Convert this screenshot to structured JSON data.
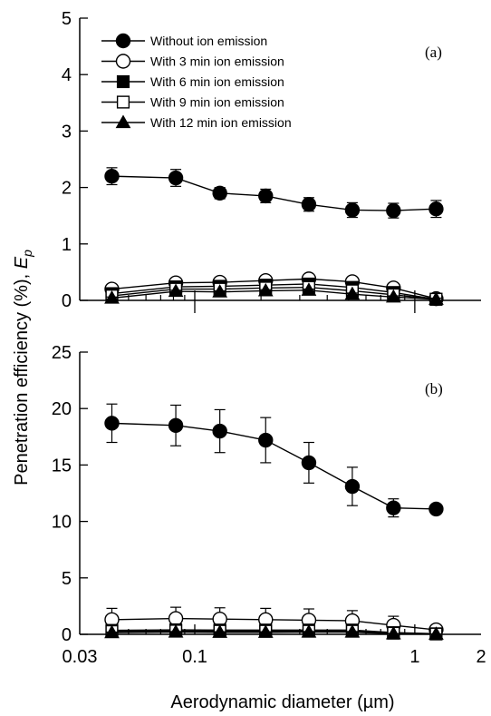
{
  "chart_data": [
    {
      "type": "line",
      "panel_label": "(a)",
      "xscale": "log",
      "xlim": [
        0.03,
        2
      ],
      "xticks": [
        0.03,
        0.1,
        1,
        2
      ],
      "xtick_labels": [
        "0.03",
        "0.1",
        "1",
        "2"
      ],
      "ylim": [
        0,
        5
      ],
      "yticks": [
        0,
        1,
        2,
        3,
        4,
        5
      ],
      "ytick_labels": [
        "0",
        "1",
        "2",
        "3",
        "4",
        "5"
      ],
      "grid": false,
      "legend_position": "top-left",
      "x": [
        0.042,
        0.082,
        0.13,
        0.21,
        0.33,
        0.52,
        0.8,
        1.25
      ],
      "series": [
        {
          "name": "Without ion emission",
          "marker": "filled-circle",
          "values": [
            2.2,
            2.17,
            1.9,
            1.85,
            1.7,
            1.6,
            1.59,
            1.62
          ],
          "errors": [
            0.15,
            0.15,
            0.1,
            0.12,
            0.12,
            0.13,
            0.13,
            0.15
          ]
        },
        {
          "name": "With 3 min ion emission",
          "marker": "open-circle",
          "values": [
            0.2,
            0.31,
            0.32,
            0.35,
            0.38,
            0.33,
            0.22,
            0.03
          ],
          "errors": [
            0.04,
            0.05,
            0.05,
            0.05,
            0.06,
            0.06,
            0.05,
            0.02
          ]
        },
        {
          "name": "With 6 min ion emission",
          "marker": "filled-square",
          "values": [
            0.12,
            0.24,
            0.25,
            0.27,
            0.29,
            0.23,
            0.14,
            0.02
          ],
          "errors": [
            0.03,
            0.04,
            0.04,
            0.04,
            0.04,
            0.04,
            0.03,
            0.02
          ]
        },
        {
          "name": "With 9 min ion emission",
          "marker": "open-square",
          "values": [
            0.08,
            0.2,
            0.2,
            0.22,
            0.23,
            0.17,
            0.1,
            0.02
          ],
          "errors": [
            0.03,
            0.03,
            0.03,
            0.03,
            0.03,
            0.03,
            0.03,
            0.02
          ]
        },
        {
          "name": "With 12 min ion emission",
          "marker": "filled-triangle",
          "values": [
            0.04,
            0.16,
            0.15,
            0.17,
            0.18,
            0.11,
            0.06,
            0.02
          ],
          "errors": [
            0.02,
            0.02,
            0.02,
            0.02,
            0.02,
            0.02,
            0.02,
            0.02
          ]
        }
      ]
    },
    {
      "type": "line",
      "panel_label": "(b)",
      "xscale": "log",
      "xlim": [
        0.03,
        2
      ],
      "xticks": [
        0.03,
        0.1,
        1,
        2
      ],
      "xtick_labels": [
        "0.03",
        "0.1",
        "1",
        "2"
      ],
      "ylim": [
        0,
        25
      ],
      "yticks": [
        0,
        5,
        10,
        15,
        20,
        25
      ],
      "ytick_labels": [
        "0",
        "5",
        "10",
        "15",
        "20",
        "25"
      ],
      "grid": false,
      "x": [
        0.042,
        0.082,
        0.13,
        0.21,
        0.33,
        0.52,
        0.8,
        1.25
      ],
      "series": [
        {
          "name": "Without ion emission",
          "marker": "filled-circle",
          "values": [
            18.7,
            18.5,
            18.0,
            17.2,
            15.2,
            13.1,
            11.2,
            11.1
          ],
          "errors": [
            1.7,
            1.8,
            1.9,
            2.0,
            1.8,
            1.7,
            0.8,
            0.0
          ]
        },
        {
          "name": "With 3 min ion emission",
          "marker": "open-circle",
          "values": [
            1.3,
            1.4,
            1.35,
            1.3,
            1.25,
            1.2,
            0.8,
            0.4
          ],
          "errors": [
            1.0,
            1.0,
            1.0,
            1.0,
            1.0,
            0.9,
            0.8,
            0.1
          ]
        },
        {
          "name": "With 6 min ion emission",
          "marker": "filled-square",
          "values": [
            0.35,
            0.4,
            0.38,
            0.38,
            0.38,
            0.38,
            0.15,
            0.05
          ],
          "errors": [
            0.1,
            0.1,
            0.1,
            0.1,
            0.1,
            0.1,
            0.05,
            0.02
          ]
        },
        {
          "name": "With 9 min ion emission",
          "marker": "open-square",
          "values": [
            0.25,
            0.3,
            0.28,
            0.28,
            0.28,
            0.28,
            0.1,
            0.03
          ],
          "errors": [
            0.1,
            0.1,
            0.1,
            0.1,
            0.1,
            0.1,
            0.05,
            0.02
          ]
        },
        {
          "name": "With 12 min ion emission",
          "marker": "filled-triangle",
          "values": [
            0.15,
            0.2,
            0.18,
            0.18,
            0.2,
            0.2,
            0.05,
            0.02
          ],
          "errors": [
            0.05,
            0.05,
            0.05,
            0.05,
            0.05,
            0.05,
            0.02,
            0.01
          ]
        }
      ]
    }
  ],
  "labels": {
    "ylabel_main": "Penetration efficiency (%),  ",
    "ylabel_symbol": "E",
    "ylabel_subscript": "p",
    "xlabel": "Aerodynamic diameter (µm)"
  }
}
